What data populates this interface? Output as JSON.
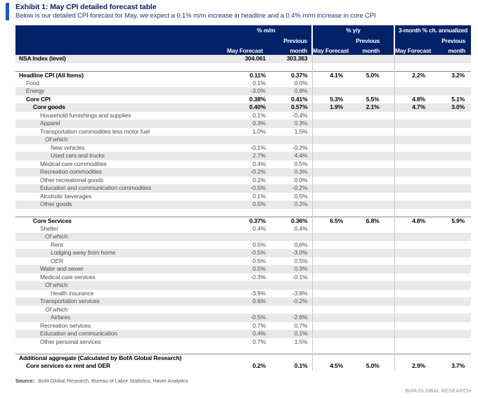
{
  "exhibit": {
    "title": "Exhibit 1: May CPI detailed forecast table",
    "subtitle": "Below is our detailed CPI forecast for May, we expect a 0.1% m/m increase in headline and a 0.4% m/m increase in core CPI"
  },
  "colors": {
    "header_navy": "#012169",
    "accent_blue": "#2457c5",
    "stripe_gray": "#e9e9e9",
    "separator_gray": "#c9c9c9"
  },
  "table": {
    "col_groups": [
      {
        "label": "% m/m"
      },
      {
        "label": "% y/y"
      },
      {
        "label": "3-month % ch. annualized"
      }
    ],
    "sub": {
      "may": "May Forecast",
      "previous": "Previous",
      "month": "month"
    },
    "rows": [
      {
        "label": "NSA Index (level)",
        "indent": 0,
        "bold": true,
        "shade": true,
        "values": [
          "304.061",
          "303.363",
          "",
          "",
          "",
          ""
        ]
      },
      {
        "blank": true
      },
      {
        "label": "Headline CPI (All Items)",
        "indent": 0,
        "bold": true,
        "rule": true,
        "values": [
          "0.11%",
          "0.37%",
          "4.1%",
          "5.0%",
          "2.2%",
          "3.2%"
        ]
      },
      {
        "label": "Food",
        "indent": 1,
        "values": [
          "0.1%",
          "0.0%",
          "",
          "",
          "",
          ""
        ]
      },
      {
        "label": "Energy",
        "indent": 1,
        "shade": true,
        "values": [
          "-3.0%",
          "0.6%",
          "",
          "",
          "",
          ""
        ]
      },
      {
        "label": "Core CPI",
        "indent": 1,
        "bold": true,
        "values": [
          "0.38%",
          "0.41%",
          "5.3%",
          "5.5%",
          "4.8%",
          "5.1%"
        ]
      },
      {
        "label": "Core goods",
        "indent": 2,
        "bold": true,
        "shade": true,
        "values": [
          "0.40%",
          "0.57%",
          "1.9%",
          "2.1%",
          "4.7%",
          "3.0%"
        ]
      },
      {
        "label": "Household furnishings and supplies",
        "indent": 3,
        "values": [
          "0.1%",
          "-0.4%",
          "",
          "",
          "",
          ""
        ]
      },
      {
        "label": "Apparel",
        "indent": 3,
        "shade": true,
        "values": [
          "0.3%",
          "0.3%",
          "",
          "",
          "",
          ""
        ]
      },
      {
        "label": "Transportation commodities less motor fuel",
        "indent": 3,
        "values": [
          "1.0%",
          "1.5%",
          "",
          "",
          "",
          ""
        ]
      },
      {
        "label": "Of which:",
        "indent": 4,
        "italic": true,
        "shade": true,
        "values": [
          "",
          "",
          "",
          "",
          "",
          ""
        ]
      },
      {
        "label": "New vehicles",
        "indent": 5,
        "values": [
          "-0.1%",
          "-0.2%",
          "",
          "",
          "",
          ""
        ]
      },
      {
        "label": "Used cars and trucks",
        "indent": 5,
        "shade": true,
        "values": [
          "2.7%",
          "4.4%",
          "",
          "",
          "",
          ""
        ]
      },
      {
        "label": "Medical care commodities",
        "indent": 3,
        "values": [
          "0.4%",
          "0.5%",
          "",
          "",
          "",
          ""
        ]
      },
      {
        "label": "Recreation commodities",
        "indent": 3,
        "shade": true,
        "values": [
          "-0.2%",
          "0.3%",
          "",
          "",
          "",
          ""
        ]
      },
      {
        "label": "Other recreational goods",
        "indent": 3,
        "values": [
          "0.2%",
          "0.0%",
          "",
          "",
          "",
          ""
        ]
      },
      {
        "label": "Education and communication commodities",
        "indent": 3,
        "shade": true,
        "values": [
          "-0.5%",
          "-0.2%",
          "",
          "",
          "",
          ""
        ]
      },
      {
        "label": "Alcoholic beverages",
        "indent": 3,
        "values": [
          "0.1%",
          "0.5%",
          "",
          "",
          "",
          ""
        ]
      },
      {
        "label": "Other goods",
        "indent": 3,
        "shade": true,
        "values": [
          "0.5%",
          "0.2%",
          "",
          "",
          "",
          ""
        ]
      },
      {
        "blank": true
      },
      {
        "label": "Core Services",
        "indent": 2,
        "bold": true,
        "rule": true,
        "values": [
          "0.37%",
          "0.36%",
          "6.5%",
          "6.8%",
          "4.8%",
          "5.9%"
        ]
      },
      {
        "label": "Shelter",
        "indent": 3,
        "values": [
          "0.4%",
          "0.4%",
          "",
          "",
          "",
          ""
        ]
      },
      {
        "label": "Of which:",
        "indent": 4,
        "italic": true,
        "shade": true,
        "values": [
          "",
          "",
          "",
          "",
          "",
          ""
        ]
      },
      {
        "label": "Rent",
        "indent": 5,
        "values": [
          "0.5%",
          "0.6%",
          "",
          "",
          "",
          ""
        ]
      },
      {
        "label": "Lodging away from home",
        "indent": 5,
        "shade": true,
        "values": [
          "-0.5%",
          "-3.0%",
          "",
          "",
          "",
          ""
        ]
      },
      {
        "label": "OER",
        "indent": 5,
        "values": [
          "0.5%",
          "0.5%",
          "",
          "",
          "",
          ""
        ]
      },
      {
        "label": "Water and sewer",
        "indent": 3,
        "shade": true,
        "values": [
          "0.5%",
          "0.3%",
          "",
          "",
          "",
          ""
        ]
      },
      {
        "label": "Medical care services",
        "indent": 3,
        "values": [
          "-0.3%",
          "-0.1%",
          "",
          "",
          "",
          ""
        ]
      },
      {
        "label": "Of which:",
        "indent": 4,
        "italic": true,
        "shade": true,
        "values": [
          "",
          "",
          "",
          "",
          "",
          ""
        ]
      },
      {
        "label": "Health insurance",
        "indent": 5,
        "values": [
          "-3.9%",
          "-3.8%",
          "",
          "",
          "",
          ""
        ]
      },
      {
        "label": "Transportation services",
        "indent": 3,
        "shade": true,
        "values": [
          "0.6%",
          "-0.2%",
          "",
          "",
          "",
          ""
        ]
      },
      {
        "label": "Of which:",
        "indent": 4,
        "italic": true,
        "values": [
          "",
          "",
          "",
          "",
          "",
          ""
        ]
      },
      {
        "label": "Airfares",
        "indent": 5,
        "shade": true,
        "values": [
          "-0.5%",
          "-2.6%",
          "",
          "",
          "",
          ""
        ]
      },
      {
        "label": "Recreation services",
        "indent": 3,
        "values": [
          "0.7%",
          "0.7%",
          "",
          "",
          "",
          ""
        ]
      },
      {
        "label": "Education and communication",
        "indent": 3,
        "shade": true,
        "values": [
          "0.4%",
          "0.1%",
          "",
          "",
          "",
          ""
        ]
      },
      {
        "label": "Other personal services",
        "indent": 3,
        "values": [
          "0.7%",
          "1.5%",
          "",
          "",
          "",
          ""
        ]
      },
      {
        "blank": true
      },
      {
        "label": "Additional aggregate (Calculated by BofA Global Research)",
        "indent": 0,
        "bold": true,
        "rule": true,
        "values": [
          "",
          "",
          "",
          "",
          "",
          ""
        ]
      },
      {
        "label": "Core services ex rent and OER",
        "indent": 1,
        "bold": true,
        "values": [
          "0.2%",
          "0.1%",
          "4.5%",
          "5.0%",
          "2.9%",
          "3.7%"
        ]
      }
    ]
  },
  "footer": {
    "source_label": "Source:",
    "source_text": "BofA Global Research, Bureau of Labor Statistics, Haver Analytics",
    "brand": "BofA GLOBAL RESEARCH"
  }
}
